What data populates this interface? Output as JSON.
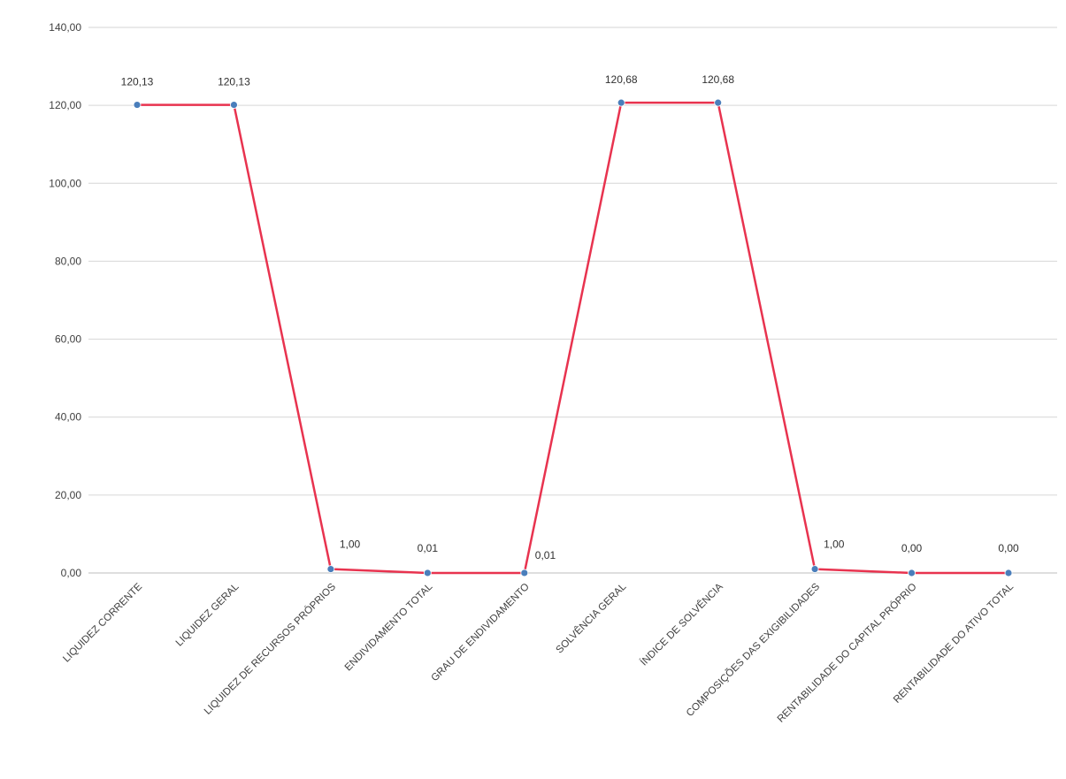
{
  "chart_data": {
    "type": "line",
    "categories": [
      "LIQUIDEZ CORRENTE",
      "LIQUIDEZ GERAL",
      "LIQUIDEZ DE RECURSOS PRÓPRIOS",
      "ENDIVIDAMENTO TOTAL",
      "GRAU DE ENDIVIDAMENTO",
      "SOLVÊNCIA GERAL",
      "ÍNDICE DE SOLVÊNCIA",
      "COMPOSIÇÕES DAS EXIGIBILIDADES",
      "RENTABILIDADE DO CAPITAL PRÓPRIO",
      "RENTABILIDADE DO ATIVO TOTAL"
    ],
    "series": [
      {
        "values": [
          120.13,
          120.13,
          1.0,
          0.01,
          0.01,
          120.68,
          120.68,
          1.0,
          0.0,
          0.0
        ],
        "data_labels": [
          "120,13",
          "120,13",
          "1,00",
          "0,01",
          "0,01",
          "120,68",
          "120,68",
          "1,00",
          "0,00",
          "0,00"
        ],
        "line_color": "#e8334f",
        "marker_color": "#4a7ebb"
      }
    ],
    "y_ticks": [
      "0,00",
      "20,00",
      "40,00",
      "60,00",
      "80,00",
      "100,00",
      "120,00",
      "140,00"
    ],
    "ylim": [
      0,
      140
    ],
    "grid": true,
    "legend": "none"
  }
}
